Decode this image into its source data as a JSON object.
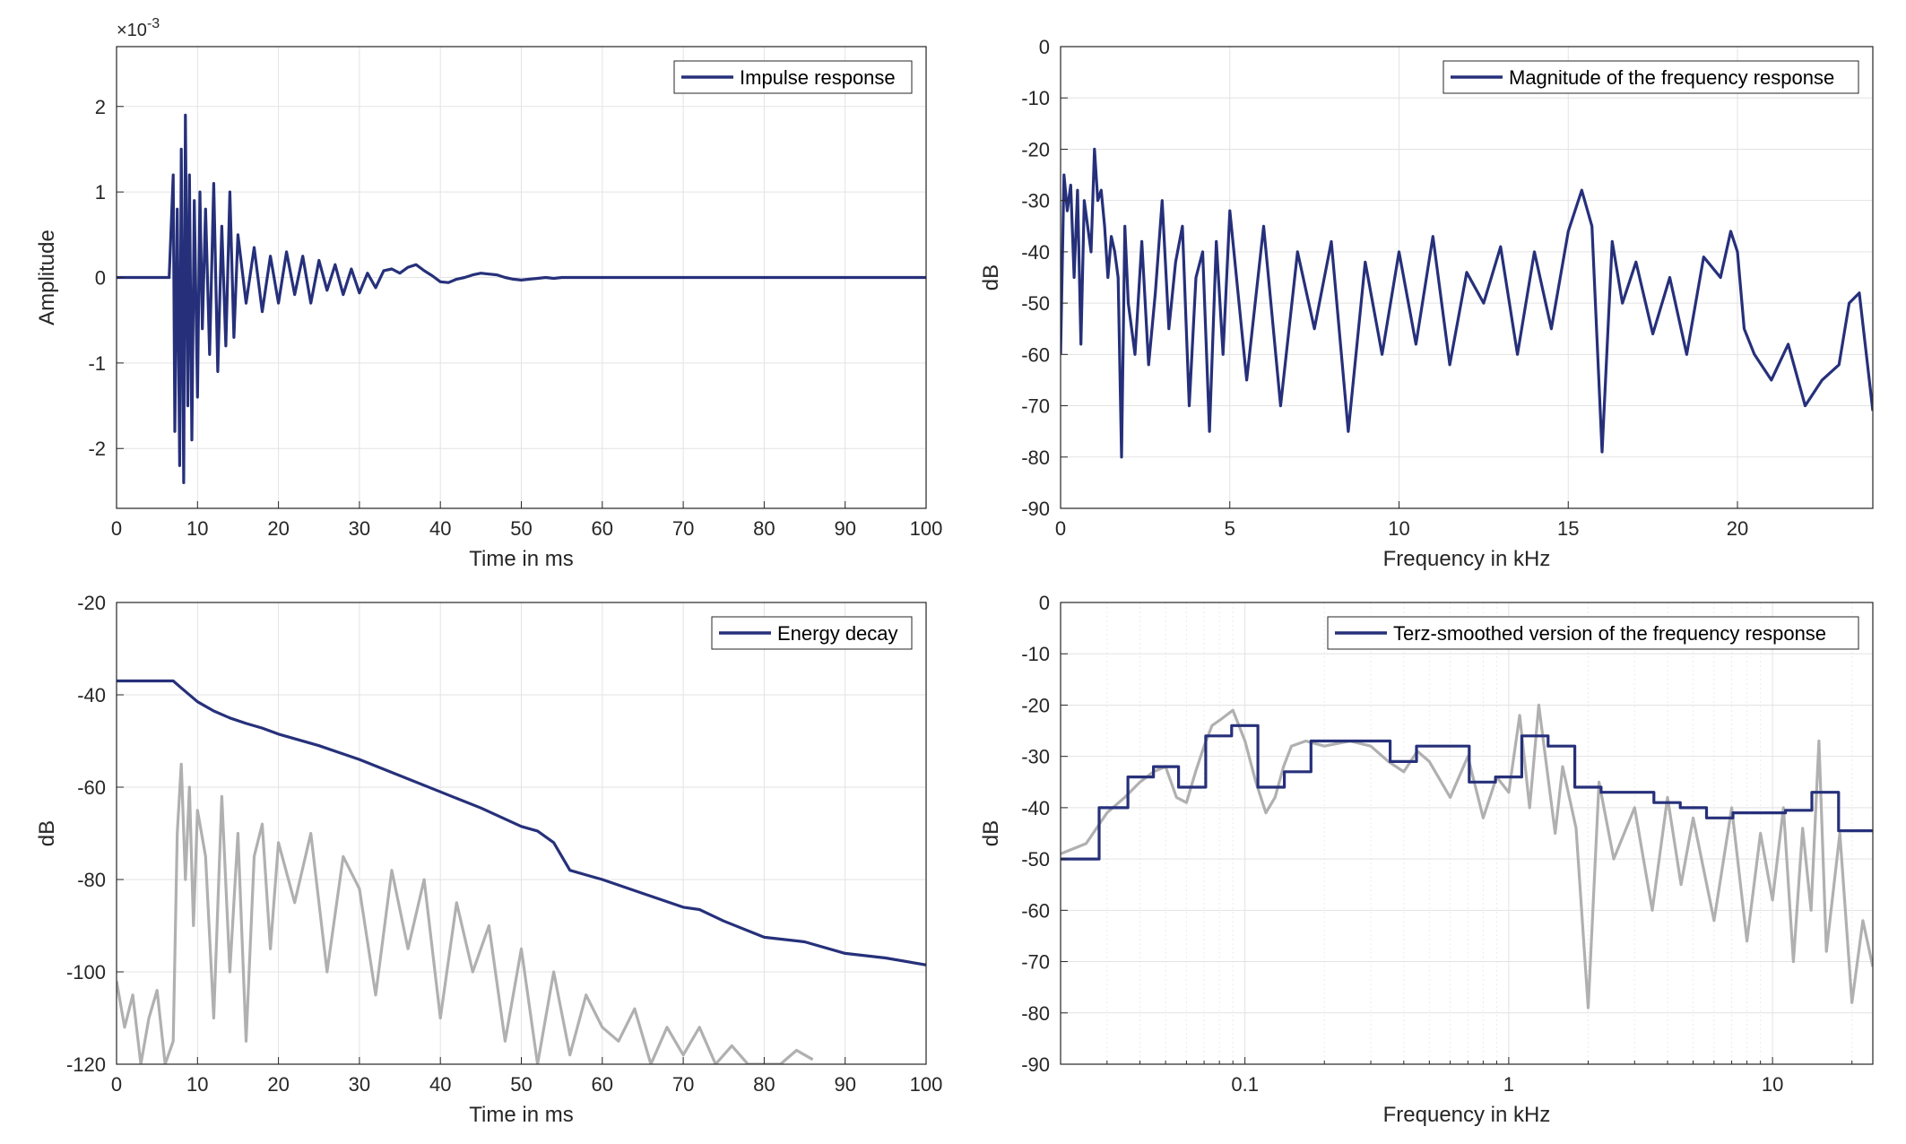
{
  "colors": {
    "primary": "#26307a",
    "secondary": "#b0b0b0",
    "grid": "#e3e3e3",
    "axis": "#262626"
  },
  "chart_data": [
    {
      "type": "line",
      "id": "impulse",
      "xlabel": "Time in ms",
      "ylabel": "Amplitude",
      "xlim": [
        0,
        100
      ],
      "ylim": [
        -2.7,
        2.7
      ],
      "xscale": "linear",
      "exponent_label": "×10",
      "exponent_power": "-3",
      "grid": true,
      "legend_position": "top-right",
      "xticks": [
        0,
        10,
        20,
        30,
        40,
        50,
        60,
        70,
        80,
        90,
        100
      ],
      "xtick_labels": [
        "0",
        "10",
        "20",
        "30",
        "40",
        "50",
        "60",
        "70",
        "80",
        "90",
        "100"
      ],
      "yticks": [
        -2,
        -1,
        0,
        1,
        2
      ],
      "ytick_labels": [
        "-2",
        "-1",
        "0",
        "1",
        "2"
      ],
      "series": [
        {
          "name": "Impulse response",
          "color": "#26307a",
          "x": [
            0,
            6.5,
            7.0,
            7.2,
            7.5,
            7.8,
            8.0,
            8.3,
            8.5,
            8.8,
            9.0,
            9.3,
            9.6,
            10.0,
            10.3,
            10.6,
            11.0,
            11.5,
            12.0,
            12.5,
            13.0,
            13.5,
            14.0,
            14.5,
            15.0,
            16,
            17,
            18,
            19,
            20,
            21,
            22,
            23,
            24,
            25,
            26,
            27,
            28,
            29,
            30,
            31,
            32,
            33,
            34,
            35,
            36,
            37,
            38,
            39,
            40,
            41,
            42,
            43,
            44,
            45,
            46,
            47,
            48,
            49,
            50,
            51,
            52,
            53,
            54,
            55,
            60,
            70,
            80,
            90,
            100
          ],
          "y": [
            0,
            0,
            1.2,
            -1.8,
            0.8,
            -2.2,
            1.5,
            -2.4,
            1.9,
            -1.5,
            1.2,
            -1.9,
            0.9,
            -1.4,
            1.0,
            -0.6,
            0.8,
            -0.9,
            1.1,
            -1.1,
            0.6,
            -0.8,
            1.0,
            -0.7,
            0.5,
            -0.3,
            0.35,
            -0.4,
            0.25,
            -0.3,
            0.3,
            -0.2,
            0.25,
            -0.3,
            0.2,
            -0.15,
            0.15,
            -0.2,
            0.1,
            -0.18,
            0.05,
            -0.12,
            0.08,
            0.1,
            0.05,
            0.12,
            0.15,
            0.08,
            0.02,
            -0.05,
            -0.06,
            -0.02,
            0.0,
            0.03,
            0.05,
            0.04,
            0.03,
            0.0,
            -0.02,
            -0.03,
            -0.02,
            -0.01,
            0.0,
            -0.01,
            0.0,
            0.0,
            0.0,
            0.0,
            0.0,
            0.0
          ]
        }
      ]
    },
    {
      "type": "line",
      "id": "magnitude",
      "xlabel": "Frequency in kHz",
      "ylabel": "dB",
      "xlim": [
        0,
        24
      ],
      "ylim": [
        -90,
        0
      ],
      "xscale": "linear",
      "grid": true,
      "legend_position": "top-right",
      "xticks": [
        0,
        5,
        10,
        15,
        20
      ],
      "xtick_labels": [
        "0",
        "5",
        "10",
        "15",
        "20"
      ],
      "yticks": [
        -90,
        -80,
        -70,
        -60,
        -50,
        -40,
        -30,
        -20,
        -10,
        0
      ],
      "ytick_labels": [
        "-90",
        "-80",
        "-70",
        "-60",
        "-50",
        "-40",
        "-30",
        "-20",
        "-10",
        "0"
      ],
      "series": [
        {
          "name": "Magnitude of the frequency response",
          "color": "#26307a",
          "x": [
            0.0,
            0.1,
            0.2,
            0.3,
            0.4,
            0.5,
            0.6,
            0.7,
            0.8,
            0.9,
            1.0,
            1.1,
            1.2,
            1.3,
            1.4,
            1.5,
            1.6,
            1.7,
            1.8,
            1.9,
            2.0,
            2.2,
            2.4,
            2.6,
            2.8,
            3.0,
            3.2,
            3.4,
            3.6,
            3.8,
            4.0,
            4.2,
            4.4,
            4.6,
            4.8,
            5.0,
            5.5,
            6.0,
            6.5,
            7.0,
            7.5,
            8.0,
            8.5,
            9.0,
            9.5,
            10.0,
            10.5,
            11.0,
            11.5,
            12.0,
            12.5,
            13.0,
            13.5,
            14.0,
            14.5,
            15.0,
            15.4,
            15.7,
            16.0,
            16.3,
            16.6,
            17.0,
            17.5,
            18.0,
            18.5,
            19.0,
            19.5,
            19.8,
            20.0,
            20.2,
            20.5,
            21.0,
            21.5,
            22.0,
            22.5,
            23.0,
            23.3,
            23.6,
            24.0
          ],
          "y": [
            -60,
            -25,
            -32,
            -27,
            -45,
            -28,
            -58,
            -30,
            -35,
            -40,
            -20,
            -30,
            -28,
            -35,
            -45,
            -37,
            -40,
            -45,
            -80,
            -35,
            -50,
            -60,
            -38,
            -62,
            -48,
            -30,
            -55,
            -42,
            -35,
            -70,
            -45,
            -40,
            -75,
            -38,
            -60,
            -32,
            -65,
            -35,
            -70,
            -40,
            -55,
            -38,
            -75,
            -42,
            -60,
            -40,
            -58,
            -37,
            -62,
            -44,
            -50,
            -39,
            -60,
            -40,
            -55,
            -36,
            -28,
            -35,
            -79,
            -38,
            -50,
            -42,
            -56,
            -45,
            -60,
            -41,
            -45,
            -36,
            -40,
            -55,
            -60,
            -65,
            -58,
            -70,
            -65,
            -62,
            -50,
            -48,
            -71
          ]
        }
      ]
    },
    {
      "type": "line",
      "id": "energy",
      "xlabel": "Time in ms",
      "ylabel": "dB",
      "xlim": [
        0,
        100
      ],
      "ylim": [
        -120,
        -20
      ],
      "xscale": "linear",
      "grid": true,
      "legend_position": "top-right",
      "xticks": [
        0,
        10,
        20,
        30,
        40,
        50,
        60,
        70,
        80,
        90,
        100
      ],
      "xtick_labels": [
        "0",
        "10",
        "20",
        "30",
        "40",
        "50",
        "60",
        "70",
        "80",
        "90",
        "100"
      ],
      "yticks": [
        -120,
        -100,
        -80,
        -60,
        -40,
        -20
      ],
      "ytick_labels": [
        "-120",
        "-100",
        "-80",
        "-60",
        "-40",
        "-20"
      ],
      "series": [
        {
          "name": "Energy decay",
          "color": "#26307a",
          "x": [
            0,
            7,
            8,
            10,
            12,
            14,
            16,
            18,
            20,
            25,
            30,
            35,
            40,
            45,
            50,
            52,
            54,
            56,
            58,
            60,
            65,
            70,
            72,
            75,
            80,
            85,
            90,
            95,
            100
          ],
          "y": [
            -37,
            -37,
            -38.5,
            -41.5,
            -43.5,
            -45,
            -46.2,
            -47.2,
            -48.5,
            -51,
            -54,
            -57.5,
            -61,
            -64.5,
            -68.5,
            -69.5,
            -72,
            -78,
            -79,
            -80,
            -83,
            -86,
            -86.5,
            -89,
            -92.5,
            -93.5,
            -96,
            -97,
            -98.5
          ]
        },
        {
          "color": "#b0b0b0",
          "x": [
            0,
            1,
            2,
            3,
            4,
            5,
            6,
            7,
            7.5,
            8,
            8.5,
            9,
            9.5,
            10,
            11,
            12,
            13,
            14,
            15,
            16,
            17,
            18,
            19,
            20,
            22,
            24,
            26,
            28,
            30,
            32,
            34,
            36,
            38,
            40,
            42,
            44,
            46,
            48,
            50,
            52,
            54,
            56,
            58,
            60,
            62,
            64,
            66,
            68,
            70,
            72,
            74,
            76,
            78,
            80,
            82,
            84,
            86
          ],
          "y": [
            -102,
            -112,
            -105,
            -120,
            -110,
            -104,
            -120,
            -115,
            -70,
            -55,
            -80,
            -60,
            -90,
            -65,
            -75,
            -110,
            -62,
            -100,
            -70,
            -115,
            -75,
            -68,
            -95,
            -72,
            -85,
            -70,
            -100,
            -75,
            -82,
            -105,
            -78,
            -95,
            -80,
            -110,
            -85,
            -100,
            -90,
            -115,
            -95,
            -120,
            -100,
            -118,
            -105,
            -112,
            -115,
            -108,
            -120,
            -112,
            -118,
            -112,
            -120,
            -116,
            -120,
            -120,
            -120,
            -117,
            -119
          ]
        }
      ]
    },
    {
      "type": "line",
      "id": "terz",
      "xlabel": "Frequency in kHz",
      "ylabel": "dB",
      "xlim": [
        0.02,
        24
      ],
      "ylim": [
        -90,
        0
      ],
      "xscale": "log",
      "grid": true,
      "legend_position": "top-right",
      "xticks": [
        0.1,
        1,
        10
      ],
      "xtick_labels": [
        "0.1",
        "1",
        "10"
      ],
      "yticks": [
        -90,
        -80,
        -70,
        -60,
        -50,
        -40,
        -30,
        -20,
        -10,
        0
      ],
      "ytick_labels": [
        "-90",
        "-80",
        "-70",
        "-60",
        "-50",
        "-40",
        "-30",
        "-20",
        "-10",
        "0"
      ],
      "series": [
        {
          "name": "Terz-smoothed version of the frequency response",
          "color": "#26307a",
          "x": [
            0.02,
            0.028,
            0.028,
            0.036,
            0.036,
            0.045,
            0.045,
            0.056,
            0.056,
            0.071,
            0.071,
            0.089,
            0.089,
            0.112,
            0.112,
            0.141,
            0.141,
            0.178,
            0.178,
            0.355,
            0.355,
            0.447,
            0.447,
            0.708,
            0.708,
            0.891,
            0.891,
            1.12,
            1.12,
            1.41,
            1.41,
            1.78,
            1.78,
            2.24,
            2.24,
            2.82,
            2.82,
            3.55,
            3.55,
            4.47,
            4.47,
            5.62,
            5.62,
            7.08,
            7.08,
            8.91,
            8.91,
            11.2,
            11.2,
            14.1,
            14.1,
            17.8,
            17.8,
            24
          ],
          "y": [
            -50,
            -50,
            -40,
            -40,
            -34,
            -34,
            -32,
            -32,
            -36,
            -36,
            -26,
            -26,
            -24,
            -24,
            -36,
            -36,
            -33,
            -33,
            -27,
            -27,
            -31,
            -31,
            -28,
            -28,
            -35,
            -35,
            -34,
            -34,
            -26,
            -26,
            -28,
            -28,
            -36,
            -36,
            -37,
            -37,
            -37,
            -37,
            -39,
            -39,
            -40,
            -40,
            -42,
            -42,
            -41,
            -41,
            -41,
            -41,
            -40.5,
            -40.5,
            -37,
            -37,
            -44.5,
            -44.5
          ]
        },
        {
          "color": "#b0b0b0",
          "x": [
            0.02,
            0.025,
            0.03,
            0.035,
            0.04,
            0.045,
            0.05,
            0.055,
            0.06,
            0.065,
            0.07,
            0.075,
            0.08,
            0.09,
            0.1,
            0.11,
            0.12,
            0.13,
            0.14,
            0.15,
            0.17,
            0.2,
            0.25,
            0.3,
            0.35,
            0.4,
            0.45,
            0.5,
            0.6,
            0.7,
            0.8,
            0.9,
            1.0,
            1.1,
            1.2,
            1.3,
            1.4,
            1.5,
            1.6,
            1.8,
            2.0,
            2.2,
            2.5,
            3.0,
            3.5,
            4.0,
            4.5,
            5.0,
            6.0,
            7.0,
            8.0,
            9.0,
            10.0,
            11.0,
            12.0,
            13.0,
            14.0,
            15.0,
            16.0,
            18.0,
            20.0,
            22.0,
            24.0
          ],
          "y": [
            -49,
            -47,
            -41,
            -38,
            -35,
            -33,
            -32,
            -38,
            -39,
            -33,
            -28,
            -24,
            -23,
            -21,
            -27,
            -35,
            -41,
            -38,
            -32,
            -28,
            -27,
            -28,
            -27,
            -28,
            -31,
            -33,
            -29,
            -31,
            -38,
            -30,
            -42,
            -34,
            -37,
            -22,
            -40,
            -20,
            -33,
            -45,
            -32,
            -44,
            -79,
            -35,
            -50,
            -40,
            -60,
            -38,
            -55,
            -42,
            -62,
            -40,
            -66,
            -45,
            -58,
            -40,
            -70,
            -44,
            -60,
            -27,
            -68,
            -45,
            -78,
            -62,
            -71
          ]
        }
      ]
    }
  ]
}
